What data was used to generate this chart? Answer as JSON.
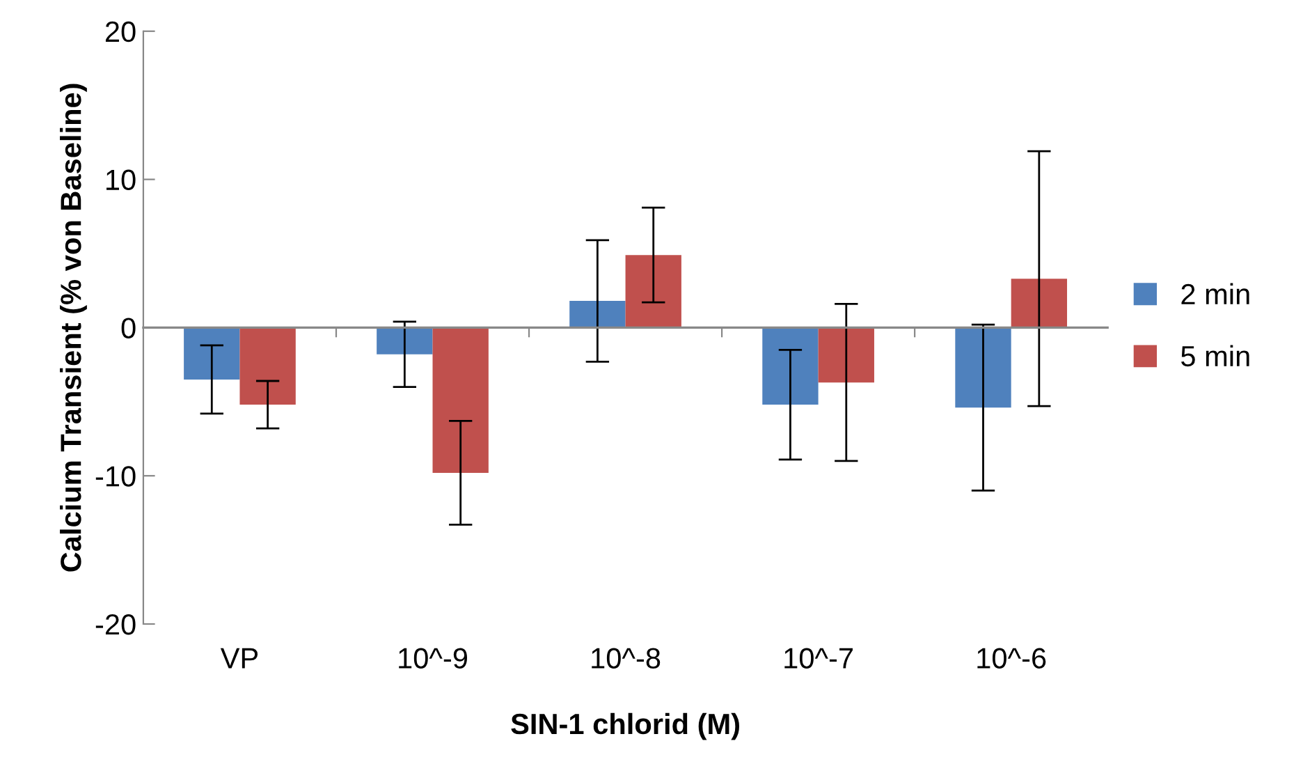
{
  "chart_data": {
    "type": "bar",
    "xlabel": "SIN-1 chlorid (M)",
    "ylabel": "Calcium Transient (% von Baseline)",
    "categories": [
      "VP",
      "10^-9",
      "10^-8",
      "10^-7",
      "10^-6"
    ],
    "series": [
      {
        "name": "2 min",
        "color": "#4f81bd",
        "values": [
          -3.5,
          -1.8,
          1.8,
          -5.2,
          -5.4
        ],
        "errors": [
          2.3,
          2.2,
          4.1,
          3.7,
          5.6
        ]
      },
      {
        "name": "5 min",
        "color": "#c0504d",
        "values": [
          -5.2,
          -9.8,
          4.9,
          -3.7,
          3.3
        ],
        "errors": [
          1.6,
          3.5,
          3.2,
          5.3,
          8.6
        ]
      }
    ],
    "ylim": [
      -20,
      20
    ],
    "yticks": [
      -20,
      -10,
      0,
      10,
      20
    ],
    "legend": "right"
  }
}
